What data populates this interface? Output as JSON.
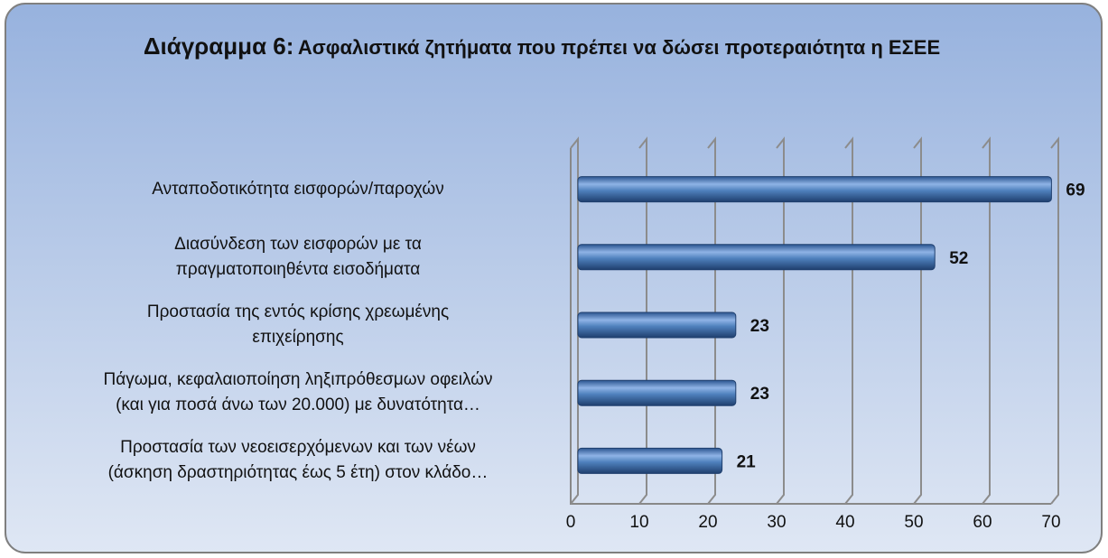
{
  "chart_data": {
    "type": "bar",
    "orientation": "horizontal",
    "title": [
      "Διάγραμμα 6:",
      "Ασφαλιστικά ζητήματα που πρέπει να δώσει προτεραιότητα η ΕΣΕΕ"
    ],
    "categories": [
      [
        "Ανταποδοτικότητα εισφορών/παροχών"
      ],
      [
        "Διασύνδεση των εισφορών με τα",
        "πραγματοποιηθέντα εισοδήματα"
      ],
      [
        "Προστασία της εντός κρίσης χρεωμένης",
        "επιχείρησης"
      ],
      [
        "Πάγωμα, κεφαλαιοποίηση ληξιπρόθεσμων οφειλών",
        "(και για ποσά άνω των 20.000) με δυνατότητα…"
      ],
      [
        "Προστασία των νεοεισερχόμενων και των νέων",
        "(άσκηση δραστηριότητας έως 5 έτη) στον κλάδο…"
      ]
    ],
    "values": [
      69,
      52,
      23,
      23,
      21
    ],
    "color": "#4f81bd",
    "xlim": [
      0,
      70
    ],
    "xticks": [
      0,
      10,
      20,
      30,
      40,
      50,
      60,
      70
    ],
    "grid": true
  }
}
